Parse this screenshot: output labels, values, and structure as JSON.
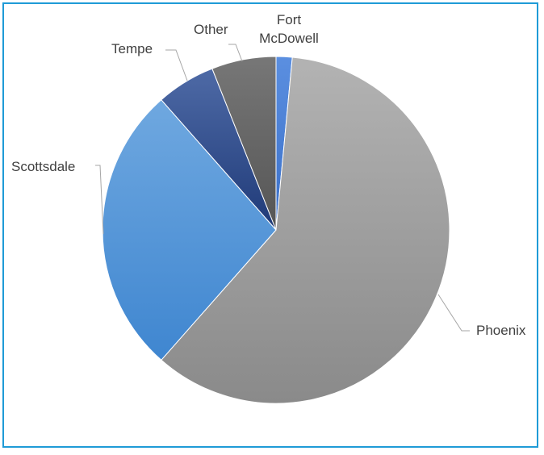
{
  "chart_data": {
    "type": "pie",
    "title": "",
    "slices": [
      {
        "label": "Fort McDowell",
        "label_lines": [
          "Fort",
          "McDowell"
        ],
        "value": 1.5,
        "color": "#4a7fd6"
      },
      {
        "label": "Phoenix",
        "label_lines": [
          "Phoenix"
        ],
        "value": 60.0,
        "color": "#9c9c9c"
      },
      {
        "label": "Scottsdale",
        "label_lines": [
          "Scottsdale"
        ],
        "value": 27.0,
        "color": "#5b9bd5"
      },
      {
        "label": "Tempe",
        "label_lines": [
          "Tempe"
        ],
        "value": 5.5,
        "color": "#2e4a86"
      },
      {
        "label": "Other",
        "label_lines": [
          "Other"
        ],
        "value": 6.0,
        "color": "#5f5f5f"
      }
    ],
    "legend": "none",
    "data_labels": "outside-with-leader-lines"
  }
}
